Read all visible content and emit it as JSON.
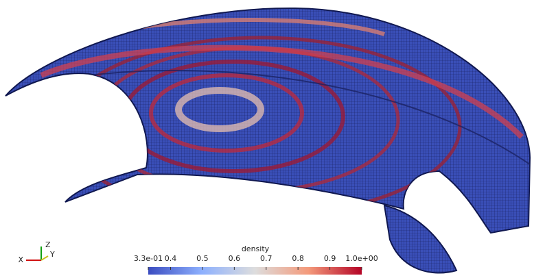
{
  "colorbar": {
    "title": "density",
    "lim": [
      0.33,
      1.0
    ],
    "ticks": [
      {
        "value": 0.33,
        "label": "3.3e-01"
      },
      0.4,
      0.5,
      0.6,
      0.7,
      0.8,
      0.9,
      {
        "value": 1.0,
        "label": "1.0e+00"
      }
    ]
  },
  "axes_triad": {
    "x": "X",
    "y": "Y",
    "z": "Z"
  }
}
